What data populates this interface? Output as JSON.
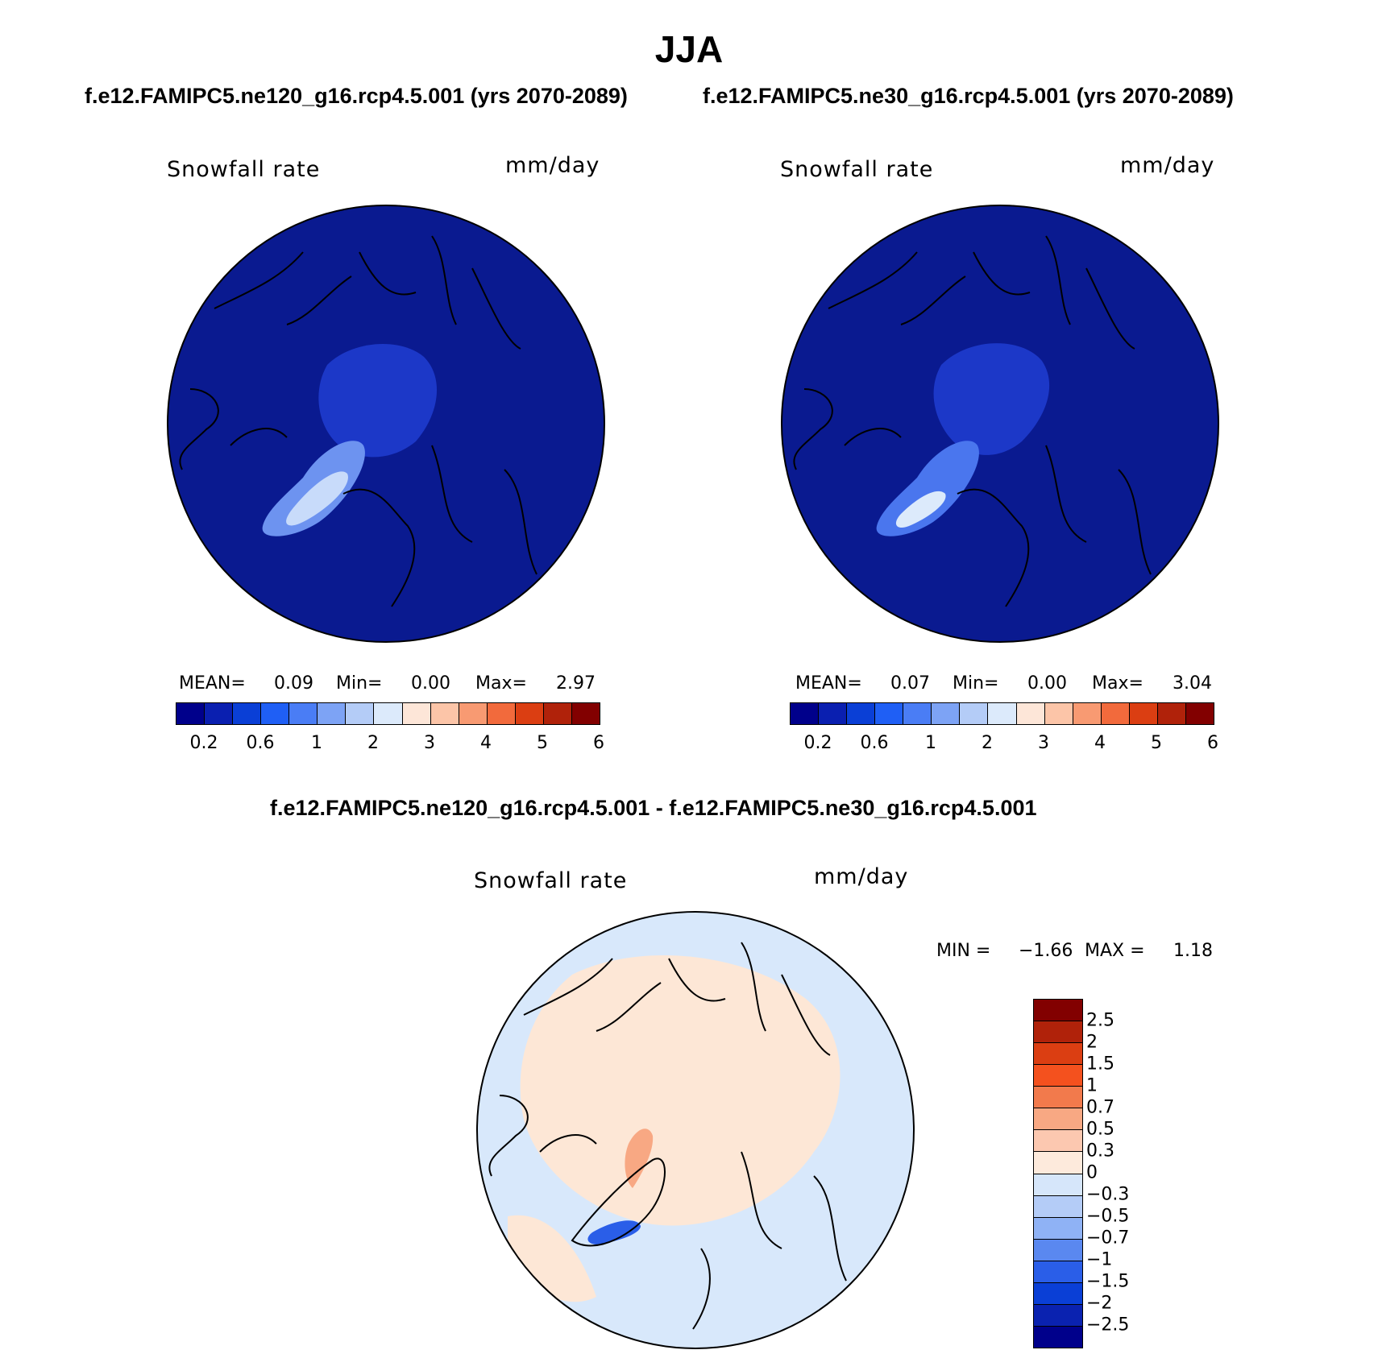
{
  "title": "JJA",
  "panels": [
    {
      "subtitle": "f.e12.FAMIPC5.ne120_g16.rcp4.5.001 (yrs 2070-2089)",
      "variable": "Snowfall rate",
      "units": "mm/day",
      "stats": {
        "mean_label": "MEAN=",
        "mean": "0.09",
        "min_label": "Min=",
        "min": "0.00",
        "max_label": "Max=",
        "max": "2.97"
      }
    },
    {
      "subtitle": "f.e12.FAMIPC5.ne30_g16.rcp4.5.001 (yrs 2070-2089)",
      "variable": "Snowfall rate",
      "units": "mm/day",
      "stats": {
        "mean_label": "MEAN=",
        "mean": "0.07",
        "min_label": "Min=",
        "min": "0.00",
        "max_label": "Max=",
        "max": "3.04"
      }
    }
  ],
  "diff": {
    "subtitle": "f.e12.FAMIPC5.ne120_g16.rcp4.5.001 - f.e12.FAMIPC5.ne30_g16.rcp4.5.001",
    "variable": "Snowfall rate",
    "units": "mm/day",
    "stats": {
      "min_label": "MIN =",
      "min": "−1.66",
      "max_label": "MAX =",
      "max": "1.18"
    }
  },
  "colorbar_abs": {
    "ticks": [
      "0.2",
      "0.6",
      "1",
      "2",
      "3",
      "4",
      "5",
      "6"
    ],
    "colors": [
      "#00008b",
      "#0a1fb0",
      "#0a3fd6",
      "#1f5ff5",
      "#4a7df5",
      "#7da3f5",
      "#b4ccf7",
      "#dceafb",
      "#fde6d8",
      "#fcc5a8",
      "#f89a72",
      "#f26a3c",
      "#db3e12",
      "#b0220a",
      "#820000"
    ]
  },
  "colorbar_diff": {
    "ticks": [
      "2.5",
      "2",
      "1.5",
      "1",
      "0.7",
      "0.5",
      "0.3",
      "0",
      "−0.3",
      "−0.5",
      "−0.7",
      "−1",
      "−1.5",
      "−2",
      "−2.5"
    ],
    "colors": [
      "#820000",
      "#b0220a",
      "#db3e12",
      "#f4511e",
      "#f27a4c",
      "#f8a883",
      "#fcc8b0",
      "#fdeadc",
      "#d6e6fa",
      "#b4ccf7",
      "#8fb2f5",
      "#5a88f0",
      "#2a5ee8",
      "#0a3fd6",
      "#0a22b0",
      "#00008b"
    ]
  },
  "map_colors": {
    "ocean": "#0a1a90",
    "ice_field": "#1c38c8",
    "land_line": "#000000",
    "diff_pos": "#fde7d6",
    "diff_neg": "#d8e8fb"
  }
}
